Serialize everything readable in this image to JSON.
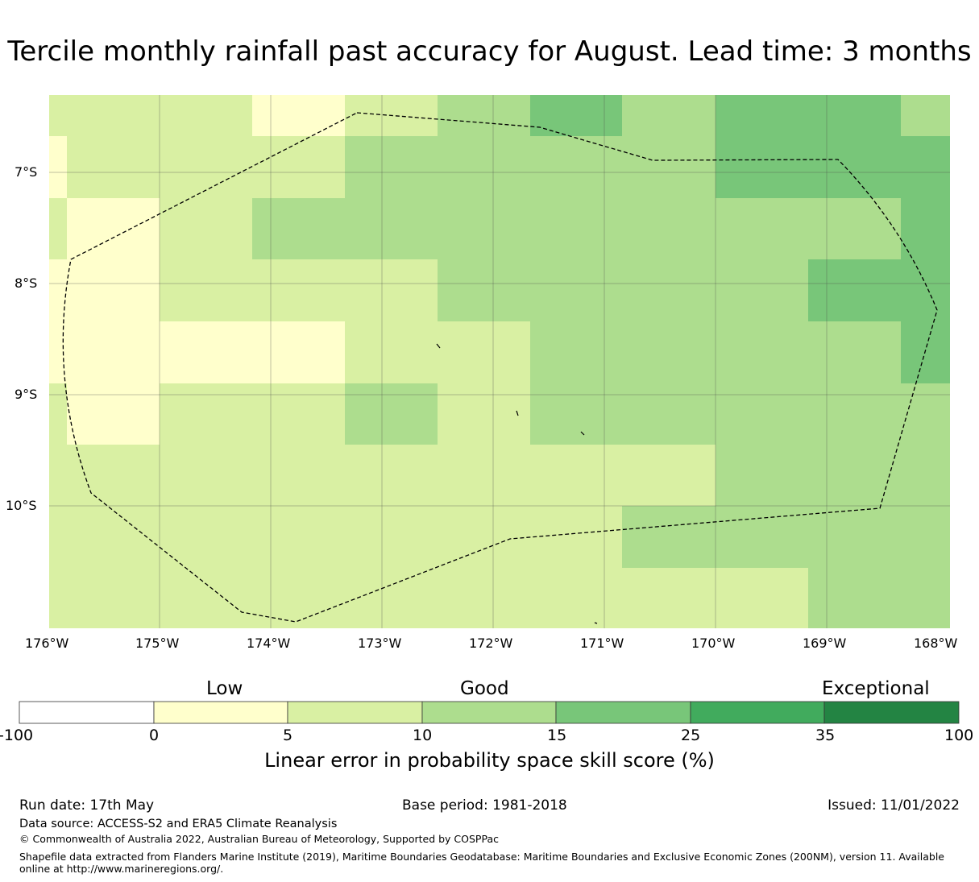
{
  "title": "Tercile monthly rainfall past accuracy for August. Lead time: 3 months",
  "map": {
    "lat_labels": [
      "7°S",
      "8°S",
      "9°S",
      "10°S"
    ],
    "lon_labels": [
      "176°W",
      "175°W",
      "174°W",
      "173°W",
      "172°W",
      "171°W",
      "170°W",
      "169°W",
      "168°W"
    ],
    "palette": {
      "low": "#ffffcc",
      "mid": "#d9f0a3",
      "good": "#addd8e",
      "high": "#78c679"
    },
    "boundary_style": "dashed"
  },
  "colorbar": {
    "category_labels": {
      "low": "Low",
      "good": "Good",
      "exceptional": "Exceptional"
    },
    "ticks": [
      "-100",
      "0",
      "5",
      "10",
      "15",
      "25",
      "35",
      "100"
    ],
    "colors": [
      "#ffffff",
      "#ffffcc",
      "#d9f0a3",
      "#addd8e",
      "#78c679",
      "#41ab5d",
      "#238443"
    ],
    "title": "Linear error in probability space skill score (%)"
  },
  "footer": {
    "run_date": "Run date: 17th May",
    "base_period": "Base period: 1981-2018",
    "issued": "Issued: 11/01/2022",
    "data_source": "Data source: ACCESS-S2 and ERA5 Climate Reanalysis",
    "copyright": "© Commonwealth of Australia 2022, Australian Bureau of Meteorology, Supported by COSPPac",
    "shapefile_note": "Shapefile data extracted from Flanders Marine Institute (2019), Maritime Boundaries Geodatabase: Maritime Boundaries and Exclusive Economic Zones (200NM), version 11. Available online at http://www.marineregions.org/."
  }
}
